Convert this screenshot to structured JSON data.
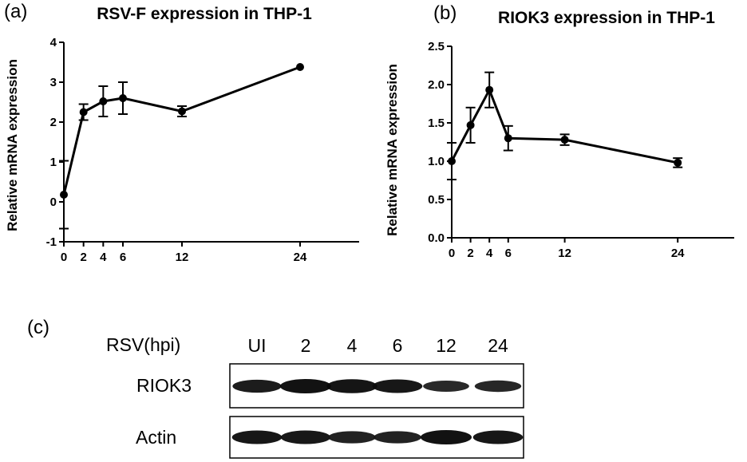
{
  "panels": {
    "a": "(a)",
    "b": "(b)",
    "c": "(c)"
  },
  "chart_data": [
    {
      "type": "line",
      "title": "RSV-F expression in THP-1",
      "xlabel": "",
      "ylabel": "Relative mRNA expression",
      "x": [
        0,
        2,
        4,
        6,
        12,
        24
      ],
      "x_ticks": [
        0,
        2,
        4,
        6,
        12,
        24
      ],
      "y_ticks": [
        -1,
        0,
        1,
        2,
        3,
        4
      ],
      "xlim": [
        0,
        30
      ],
      "ylim": [
        -1,
        4
      ],
      "series": [
        {
          "values": [
            0.18,
            2.25,
            2.52,
            2.6,
            2.27,
            3.38
          ],
          "error": [
            0.85,
            0.2,
            0.38,
            0.4,
            0.13,
            0.0
          ]
        }
      ],
      "grid": false,
      "color": "#000000"
    },
    {
      "type": "line",
      "title": "RIOK3 expression in THP-1",
      "xlabel": "",
      "ylabel": "Relative mRNA expression",
      "x": [
        0,
        2,
        4,
        6,
        12,
        24
      ],
      "x_ticks": [
        0,
        2,
        4,
        6,
        12,
        24
      ],
      "y_ticks": [
        "0.0",
        "0.5",
        "1.0",
        "1.5",
        "2.0",
        "2.5"
      ],
      "xlim": [
        0,
        30
      ],
      "ylim": [
        0,
        2.5
      ],
      "series": [
        {
          "values": [
            1.0,
            1.47,
            1.93,
            1.3,
            1.28,
            0.98
          ],
          "error": [
            0.24,
            0.23,
            0.23,
            0.16,
            0.07,
            0.06
          ]
        }
      ],
      "grid": false,
      "color": "#000000"
    }
  ],
  "blot": {
    "condition_label": "RSV(hpi)",
    "lanes": [
      "UI",
      "2",
      "4",
      "6",
      "12",
      "24"
    ],
    "rows": [
      {
        "label": "RIOK3",
        "band_intensity": [
          0.8,
          1.0,
          0.95,
          0.9,
          0.55,
          0.6
        ]
      },
      {
        "label": "Actin",
        "band_intensity": [
          0.9,
          0.88,
          0.7,
          0.7,
          1.0,
          0.9
        ]
      }
    ]
  }
}
